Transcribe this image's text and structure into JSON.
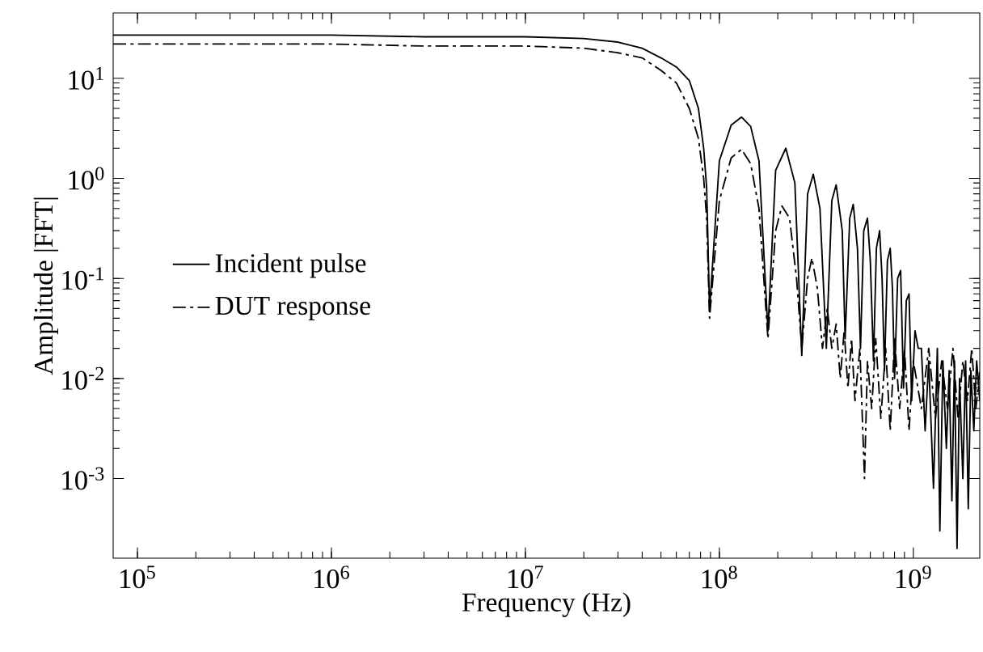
{
  "chart_data": {
    "type": "line",
    "xlabel": "Frequency (Hz)",
    "ylabel": "Amplitude |FFT|",
    "log": "xy",
    "grid": false,
    "legend": "left",
    "marker": "none",
    "xlim": [
      75000,
      2200000000
    ],
    "ylim": [
      0.00016,
      45
    ],
    "xticks": [
      {
        "value": 100000,
        "label": "10$^{5}$"
      },
      {
        "value": 1000000,
        "label": "10$^{6}$"
      },
      {
        "value": 10000000,
        "label": "10$^{7}$"
      },
      {
        "value": 100000000,
        "label": "10$^{8}$"
      },
      {
        "value": 1000000000,
        "label": "10$^{9}$"
      }
    ],
    "yticks": [
      {
        "value": 0.001,
        "label": "10$^{-3}$"
      },
      {
        "value": 0.01,
        "label": "10$^{-2}$"
      },
      {
        "value": 0.1,
        "label": "10$^{-1}$"
      },
      {
        "value": 1,
        "label": "10$^{0}$"
      },
      {
        "value": 10,
        "label": "10$^{1}$"
      }
    ],
    "series": [
      {
        "name": "Incident pulse",
        "color": "#000000",
        "line_style": "solid",
        "x": [
          75000,
          1000000,
          3000000,
          10000000,
          20000000,
          30000000,
          40000000,
          50000000,
          60000000,
          70000000,
          78000000,
          83000000,
          86000000,
          89000000,
          100000000,
          115000000,
          130000000,
          145000000,
          160000000,
          178000000,
          195000000,
          220000000,
          245000000,
          266000000,
          285000000,
          305000000,
          330000000,
          356000000,
          380000000,
          400000000,
          430000000,
          445000000,
          470000000,
          490000000,
          515000000,
          534000000,
          555000000,
          580000000,
          600000000,
          623000000,
          645000000,
          670000000,
          690000000,
          710000000,
          735000000,
          760000000,
          780000000,
          800000000,
          830000000,
          860000000,
          890000000,
          920000000,
          950000000,
          980000000,
          1020000000,
          1060000000,
          1100000000,
          1150000000,
          1200000000,
          1270000000,
          1330000000,
          1370000000,
          1420000000,
          1480000000,
          1530000000,
          1580000000,
          1630000000,
          1680000000,
          1730000000,
          1800000000,
          1860000000,
          1920000000,
          1980000000,
          2050000000,
          2120000000,
          2200000000
        ],
        "values": [
          27,
          27,
          26,
          26,
          25,
          23,
          20,
          16,
          13,
          9.5,
          5,
          2,
          0.8,
          0.048,
          1.5,
          3.4,
          4.1,
          3.3,
          1.5,
          0.03,
          1.2,
          2.0,
          0.9,
          0.017,
          0.7,
          1.1,
          0.5,
          0.02,
          0.6,
          0.86,
          0.3,
          0.025,
          0.4,
          0.55,
          0.2,
          0.02,
          0.3,
          0.4,
          0.15,
          0.015,
          0.2,
          0.3,
          0.1,
          0.012,
          0.15,
          0.2,
          0.08,
          0.01,
          0.1,
          0.12,
          0.008,
          0.06,
          0.07,
          0.006,
          0.03,
          0.02,
          0.02,
          0.003,
          0.015,
          0.0008,
          0.02,
          0.0003,
          0.015,
          0.002,
          0.012,
          0.0006,
          0.015,
          0.0002,
          0.01,
          0.001,
          0.015,
          0.0005,
          0.012,
          0.003,
          0.015,
          0.006
        ]
      },
      {
        "name": "DUT response",
        "color": "#000000",
        "line_style": "dashdot",
        "x": [
          75000,
          1000000,
          3000000,
          10000000,
          20000000,
          30000000,
          40000000,
          50000000,
          60000000,
          70000000,
          78000000,
          83000000,
          86000000,
          89000000,
          100000000,
          115000000,
          130000000,
          145000000,
          160000000,
          178000000,
          195000000,
          210000000,
          230000000,
          250000000,
          266000000,
          285000000,
          300000000,
          320000000,
          340000000,
          360000000,
          380000000,
          400000000,
          420000000,
          440000000,
          460000000,
          480000000,
          500000000,
          530000000,
          560000000,
          580000000,
          610000000,
          640000000,
          680000000,
          720000000,
          760000000,
          800000000,
          850000000,
          900000000,
          950000000,
          1000000000,
          1100000000,
          1200000000,
          1300000000,
          1400000000,
          1500000000,
          1600000000,
          1700000000,
          1800000000,
          1900000000,
          2000000000,
          2100000000,
          2200000000
        ],
        "values": [
          22,
          22,
          21,
          21,
          20,
          18,
          16,
          12,
          9,
          5,
          2.5,
          1,
          0.4,
          0.04,
          0.6,
          1.6,
          1.95,
          1.4,
          0.5,
          0.025,
          0.3,
          0.53,
          0.4,
          0.1,
          0.02,
          0.1,
          0.16,
          0.08,
          0.02,
          0.05,
          0.02,
          0.035,
          0.01,
          0.03,
          0.008,
          0.025,
          0.006,
          0.02,
          0.001,
          0.015,
          0.005,
          0.025,
          0.004,
          0.02,
          0.003,
          0.025,
          0.005,
          0.02,
          0.003,
          0.015,
          0.005,
          0.02,
          0.004,
          0.015,
          0.005,
          0.02,
          0.004,
          0.015,
          0.006,
          0.02,
          0.005,
          0.012
        ]
      }
    ]
  }
}
